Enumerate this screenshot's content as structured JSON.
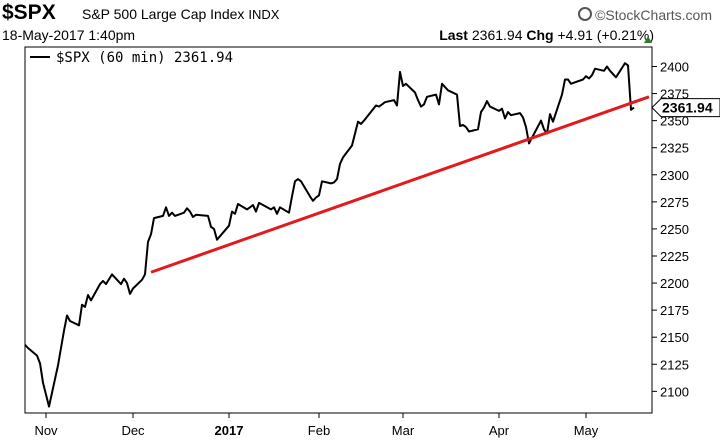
{
  "header": {
    "symbol": "$SPX",
    "description": "S&P 500 Large Cap Index",
    "exchange": "INDX",
    "logo": "©StockCharts.com",
    "datetime": "18-May-2017 1:40pm",
    "last_label": "Last",
    "last_value": "2361.94",
    "chg_label": "Chg",
    "chg_value": "+4.91 (+0.21%)",
    "chg_icon": "triangle-up-icon",
    "chg_color": "#2e7d32"
  },
  "chart_data": {
    "type": "line",
    "legend": {
      "label": "$SPX (60 min) 2361.94",
      "placement": "top-left"
    },
    "ylim": [
      2080,
      2418
    ],
    "yticks": [
      2100,
      2125,
      2150,
      2175,
      2200,
      2225,
      2250,
      2275,
      2300,
      2325,
      2350,
      2375,
      2400
    ],
    "xlim": [
      "2016-10-27",
      "2017-05-24"
    ],
    "xtick_labels": [
      {
        "date": "2016-11-03",
        "label": "Nov",
        "bold": false
      },
      {
        "date": "2016-12-02",
        "label": "Dec",
        "bold": false
      },
      {
        "date": "2017-01-03",
        "label": "2017",
        "bold": true
      },
      {
        "date": "2017-02-02",
        "label": "Feb",
        "bold": false
      },
      {
        "date": "2017-03-02",
        "label": "Mar",
        "bold": false
      },
      {
        "date": "2017-04-03",
        "label": "Apr",
        "bold": false
      },
      {
        "date": "2017-05-02",
        "label": "May",
        "bold": false
      }
    ],
    "last_price_label": "2361.94",
    "grid": false,
    "series": [
      {
        "color": "#000000",
        "x": [
          "2016-10-27",
          "2016-10-28",
          "2016-10-31",
          "2016-11-01",
          "2016-11-02",
          "2016-11-03",
          "2016-11-04",
          "2016-11-07",
          "2016-11-08",
          "2016-11-09",
          "2016-11-10",
          "2016-11-11",
          "2016-11-14",
          "2016-11-15",
          "2016-11-16",
          "2016-11-17",
          "2016-11-18",
          "2016-11-21",
          "2016-11-22",
          "2016-11-23",
          "2016-11-25",
          "2016-11-28",
          "2016-11-29",
          "2016-11-30",
          "2016-12-01",
          "2016-12-02",
          "2016-12-05",
          "2016-12-06",
          "2016-12-07",
          "2016-12-08",
          "2016-12-09",
          "2016-12-12",
          "2016-12-13",
          "2016-12-14",
          "2016-12-15",
          "2016-12-16",
          "2016-12-19",
          "2016-12-20",
          "2016-12-21",
          "2016-12-22",
          "2016-12-23",
          "2016-12-27",
          "2016-12-28",
          "2016-12-29",
          "2016-12-30",
          "2017-01-03",
          "2017-01-04",
          "2017-01-05",
          "2017-01-06",
          "2017-01-09",
          "2017-01-10",
          "2017-01-11",
          "2017-01-12",
          "2017-01-13",
          "2017-01-17",
          "2017-01-18",
          "2017-01-19",
          "2017-01-20",
          "2017-01-23",
          "2017-01-24",
          "2017-01-25",
          "2017-01-26",
          "2017-01-27",
          "2017-01-30",
          "2017-01-31",
          "2017-02-01",
          "2017-02-02",
          "2017-02-03",
          "2017-02-06",
          "2017-02-07",
          "2017-02-08",
          "2017-02-09",
          "2017-02-10",
          "2017-02-13",
          "2017-02-14",
          "2017-02-15",
          "2017-02-16",
          "2017-02-17",
          "2017-02-21",
          "2017-02-22",
          "2017-02-23",
          "2017-02-24",
          "2017-02-27",
          "2017-02-28",
          "2017-03-01",
          "2017-03-02",
          "2017-03-03",
          "2017-03-06",
          "2017-03-07",
          "2017-03-08",
          "2017-03-09",
          "2017-03-10",
          "2017-03-13",
          "2017-03-14",
          "2017-03-15",
          "2017-03-16",
          "2017-03-17",
          "2017-03-20",
          "2017-03-21",
          "2017-03-22",
          "2017-03-23",
          "2017-03-24",
          "2017-03-27",
          "2017-03-28",
          "2017-03-29",
          "2017-03-30",
          "2017-03-31",
          "2017-04-03",
          "2017-04-04",
          "2017-04-05",
          "2017-04-06",
          "2017-04-07",
          "2017-04-10",
          "2017-04-11",
          "2017-04-12",
          "2017-04-13",
          "2017-04-17",
          "2017-04-18",
          "2017-04-19",
          "2017-04-20",
          "2017-04-21",
          "2017-04-24",
          "2017-04-25",
          "2017-04-26",
          "2017-04-27",
          "2017-04-28",
          "2017-05-01",
          "2017-05-02",
          "2017-05-03",
          "2017-05-04",
          "2017-05-05",
          "2017-05-08",
          "2017-05-09",
          "2017-05-10",
          "2017-05-11",
          "2017-05-12",
          "2017-05-15",
          "2017-05-16",
          "2017-05-17",
          "2017-05-18"
        ],
        "values": [
          2143,
          2140,
          2133,
          2126,
          2108,
          2097,
          2086,
          2124,
          2140,
          2156,
          2170,
          2165,
          2161,
          2180,
          2178,
          2189,
          2184,
          2199,
          2202,
          2199,
          2208,
          2199,
          2204,
          2200,
          2190,
          2195,
          2203,
          2208,
          2238,
          2245,
          2260,
          2262,
          2270,
          2262,
          2265,
          2262,
          2265,
          2269,
          2266,
          2261,
          2263,
          2262,
          2252,
          2250,
          2240,
          2253,
          2266,
          2264,
          2273,
          2268,
          2270,
          2272,
          2266,
          2274,
          2268,
          2270,
          2264,
          2270,
          2265,
          2280,
          2294,
          2296,
          2294,
          2280,
          2276,
          2279,
          2281,
          2294,
          2292,
          2293,
          2296,
          2310,
          2316,
          2327,
          2338,
          2349,
          2347,
          2350,
          2364,
          2363,
          2365,
          2367,
          2369,
          2364,
          2395,
          2382,
          2384,
          2376,
          2369,
          2363,
          2365,
          2372,
          2374,
          2365,
          2384,
          2381,
          2378,
          2374,
          2345,
          2346,
          2344,
          2340,
          2342,
          2358,
          2362,
          2368,
          2363,
          2359,
          2361,
          2352,
          2358,
          2355,
          2357,
          2353,
          2344,
          2329,
          2350,
          2342,
          2338,
          2356,
          2349,
          2374,
          2388,
          2388,
          2384,
          2385,
          2388,
          2391,
          2389,
          2392,
          2398,
          2396,
          2400,
          2396,
          2393,
          2390,
          2403,
          2401,
          2360,
          2362
        ]
      }
    ],
    "trendline": {
      "color": "#e31a1c",
      "x": [
        "2016-12-08",
        "2017-05-23"
      ],
      "values": [
        2210,
        2372
      ]
    }
  }
}
